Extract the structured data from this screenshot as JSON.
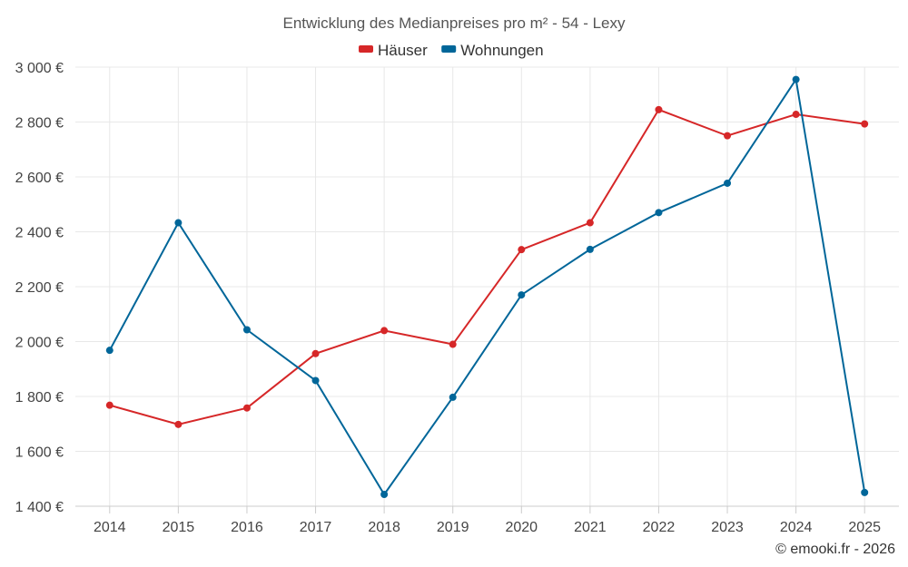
{
  "chart_data": {
    "type": "line",
    "title": "Entwicklung des Medianpreises pro m² - 54 - Lexy",
    "categories": [
      "2014",
      "2015",
      "2016",
      "2017",
      "2018",
      "2019",
      "2020",
      "2021",
      "2022",
      "2023",
      "2024",
      "2025"
    ],
    "series": [
      {
        "name": "Häuser",
        "color": "#d62728",
        "values": [
          1768,
          1698,
          1758,
          1956,
          2040,
          1990,
          2335,
          2433,
          2845,
          2750,
          2828,
          2793
        ]
      },
      {
        "name": "Wohnungen",
        "color": "#006699",
        "values": [
          1968,
          2433,
          2043,
          1858,
          1443,
          1797,
          2170,
          2336,
          2470,
          2577,
          2955,
          1450
        ]
      }
    ],
    "ylim": [
      1400,
      3000
    ],
    "yticks": [
      {
        "value": 1400,
        "label": "1 400 €"
      },
      {
        "value": 1600,
        "label": "1 600 €"
      },
      {
        "value": 1800,
        "label": "1 800 €"
      },
      {
        "value": 2000,
        "label": "2 000 €"
      },
      {
        "value": 2200,
        "label": "2 200 €"
      },
      {
        "value": 2400,
        "label": "2 400 €"
      },
      {
        "value": 2600,
        "label": "2 600 €"
      },
      {
        "value": 2800,
        "label": "2 800 €"
      },
      {
        "value": 3000,
        "label": "3 000 €"
      }
    ],
    "xlabel": "",
    "ylabel": "",
    "grid": true,
    "legend_position": "top-center"
  },
  "credit": "© emooki.fr - 2026"
}
